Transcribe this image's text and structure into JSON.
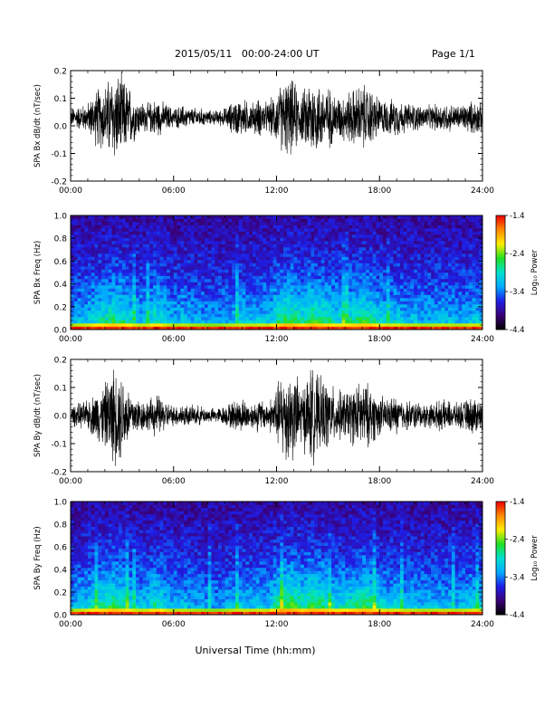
{
  "header": {
    "date_range": "2015/05/11   00:00-24:00 UT",
    "page": "Page 1/1"
  },
  "xaxis": {
    "label": "Universal Time (hh:mm)",
    "ticks": [
      "00:00",
      "06:00",
      "12:00",
      "18:00",
      "24:00"
    ],
    "range_hours": [
      0,
      24
    ]
  },
  "colorbar": {
    "label": "Log₁₀ Power",
    "ticks": [
      "-1.4",
      "-2.4",
      "-3.4",
      "-4.4"
    ],
    "range": [
      -4.4,
      -1.4
    ],
    "colors": [
      "#000000",
      "#3a0078",
      "#1e1ee6",
      "#00aaff",
      "#00e0d0",
      "#22e022",
      "#ffee00",
      "#ff8800",
      "#ee0000"
    ]
  },
  "chart_data": [
    {
      "type": "line",
      "ylabel": "SPA Bx dB/dt (nT/sec)",
      "ylim": [
        -0.2,
        0.2
      ],
      "yticks": [
        "0.2",
        "0.1",
        "0.0",
        "-0.1",
        "-0.2"
      ],
      "line_color": "#000000",
      "x_hours": [
        0,
        0.5,
        1,
        1.5,
        2,
        2.5,
        3,
        3.5,
        4,
        4.5,
        5,
        5.5,
        6,
        6.5,
        7,
        7.5,
        8,
        8.5,
        9,
        9.5,
        10,
        10.5,
        11,
        11.5,
        12,
        12.5,
        13,
        13.5,
        14,
        14.5,
        15,
        15.5,
        16,
        16.5,
        17,
        17.5,
        18,
        18.5,
        19,
        19.5,
        20,
        20.5,
        21,
        21.5,
        22,
        22.5,
        23,
        23.5,
        24
      ],
      "envelope": [
        0.04,
        0.05,
        0.06,
        0.12,
        0.14,
        0.19,
        0.17,
        0.12,
        0.07,
        0.06,
        0.08,
        0.06,
        0.04,
        0.05,
        0.04,
        0.04,
        0.03,
        0.03,
        0.04,
        0.07,
        0.08,
        0.06,
        0.08,
        0.06,
        0.11,
        0.16,
        0.15,
        0.1,
        0.18,
        0.14,
        0.13,
        0.09,
        0.1,
        0.12,
        0.14,
        0.12,
        0.08,
        0.07,
        0.08,
        0.06,
        0.06,
        0.05,
        0.05,
        0.06,
        0.06,
        0.05,
        0.06,
        0.07,
        0.06
      ],
      "center": 0.03
    },
    {
      "type": "heatmap",
      "ylabel": "SPA Bx Freq (Hz)",
      "ylim": [
        0.0,
        1.0
      ],
      "yticks": [
        "1.0",
        "0.8",
        "0.6",
        "0.4",
        "0.2",
        "0.0"
      ],
      "x_hours": [
        0,
        0.5,
        1,
        1.5,
        2,
        2.5,
        3,
        3.5,
        4,
        4.5,
        5,
        5.5,
        6,
        6.5,
        7,
        7.5,
        8,
        8.5,
        9,
        9.5,
        10,
        10.5,
        11,
        11.5,
        12,
        12.5,
        13,
        13.5,
        14,
        14.5,
        15,
        15.5,
        16,
        16.5,
        17,
        17.5,
        18,
        18.5,
        19,
        19.5,
        20,
        20.5,
        21,
        21.5,
        22,
        22.5,
        23,
        23.5,
        24
      ],
      "activity": [
        0.35,
        0.45,
        0.5,
        0.65,
        0.7,
        0.85,
        0.75,
        0.6,
        0.45,
        0.5,
        0.75,
        0.5,
        0.4,
        0.45,
        0.4,
        0.35,
        0.3,
        0.3,
        0.35,
        0.45,
        0.5,
        0.45,
        0.5,
        0.45,
        0.75,
        0.95,
        0.9,
        0.7,
        0.9,
        0.8,
        0.75,
        0.6,
        0.65,
        0.75,
        0.85,
        0.8,
        0.6,
        0.5,
        0.55,
        0.45,
        0.45,
        0.4,
        0.4,
        0.45,
        0.45,
        0.4,
        0.45,
        0.5,
        0.45
      ]
    },
    {
      "type": "line",
      "ylabel": "SPA By dB/dt (nT/sec)",
      "ylim": [
        -0.2,
        0.2
      ],
      "yticks": [
        "0.2",
        "0.1",
        "0.0",
        "-0.1",
        "-0.2"
      ],
      "line_color": "#000000",
      "x_hours": [
        0,
        0.5,
        1,
        1.5,
        2,
        2.5,
        3,
        3.5,
        4,
        4.5,
        5,
        5.5,
        6,
        6.5,
        7,
        7.5,
        8,
        8.5,
        9,
        9.5,
        10,
        10.5,
        11,
        11.5,
        12,
        12.5,
        13,
        13.5,
        14,
        14.5,
        15,
        15.5,
        16,
        16.5,
        17,
        17.5,
        18,
        18.5,
        19,
        19.5,
        20,
        20.5,
        21,
        21.5,
        22,
        22.5,
        23,
        23.5,
        24
      ],
      "envelope": [
        0.04,
        0.05,
        0.06,
        0.1,
        0.13,
        0.2,
        0.18,
        0.1,
        0.07,
        0.06,
        0.09,
        0.06,
        0.04,
        0.05,
        0.04,
        0.04,
        0.03,
        0.03,
        0.04,
        0.06,
        0.07,
        0.05,
        0.07,
        0.05,
        0.12,
        0.2,
        0.18,
        0.12,
        0.2,
        0.15,
        0.14,
        0.1,
        0.1,
        0.12,
        0.14,
        0.12,
        0.08,
        0.07,
        0.08,
        0.06,
        0.06,
        0.05,
        0.05,
        0.06,
        0.06,
        0.05,
        0.06,
        0.08,
        0.06
      ],
      "center": 0.0
    },
    {
      "type": "heatmap",
      "ylabel": "SPA By Freq (Hz)",
      "ylim": [
        0.0,
        1.0
      ],
      "yticks": [
        "1.0",
        "0.8",
        "0.6",
        "0.4",
        "0.2",
        "0.0"
      ],
      "x_hours": [
        0,
        0.5,
        1,
        1.5,
        2,
        2.5,
        3,
        3.5,
        4,
        4.5,
        5,
        5.5,
        6,
        6.5,
        7,
        7.5,
        8,
        8.5,
        9,
        9.5,
        10,
        10.5,
        11,
        11.5,
        12,
        12.5,
        13,
        13.5,
        14,
        14.5,
        15,
        15.5,
        16,
        16.5,
        17,
        17.5,
        18,
        18.5,
        19,
        19.5,
        20,
        20.5,
        21,
        21.5,
        22,
        22.5,
        23,
        23.5,
        24
      ],
      "activity": [
        0.35,
        0.45,
        0.55,
        0.7,
        0.75,
        0.9,
        0.8,
        0.6,
        0.45,
        0.5,
        0.8,
        0.55,
        0.4,
        0.45,
        0.4,
        0.35,
        0.3,
        0.3,
        0.35,
        0.45,
        0.5,
        0.45,
        0.5,
        0.45,
        0.8,
        1.0,
        0.95,
        0.75,
        0.95,
        0.85,
        0.8,
        0.6,
        0.65,
        0.75,
        0.9,
        0.85,
        0.6,
        0.5,
        0.55,
        0.45,
        0.45,
        0.4,
        0.4,
        0.45,
        0.45,
        0.4,
        0.45,
        0.55,
        0.45
      ]
    }
  ]
}
